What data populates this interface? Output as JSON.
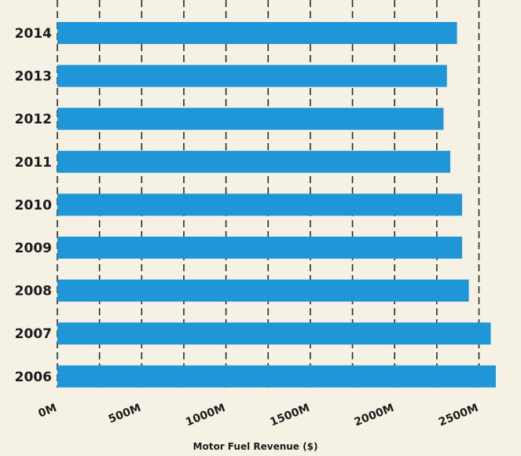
{
  "chart_data": {
    "type": "bar",
    "orientation": "horizontal",
    "categories": [
      "2014",
      "2013",
      "2012",
      "2011",
      "2010",
      "2009",
      "2008",
      "2007",
      "2006"
    ],
    "values": [
      2370,
      2310,
      2290,
      2330,
      2400,
      2400,
      2440,
      2570,
      2600
    ],
    "xlabel": "Motor Fuel Revenue ($)",
    "ylabel": "",
    "xlim": [
      0,
      2700
    ],
    "xticks": [
      0,
      500,
      1000,
      1500,
      2000,
      2500
    ],
    "xtick_labels": [
      "0M",
      "500M",
      "1000M",
      "1500M",
      "2000M",
      "2500M"
    ],
    "grid": true,
    "colors": {
      "bar": "#1e96d8",
      "grid": "#2a2a2a",
      "background": "#f5f1e4"
    }
  }
}
